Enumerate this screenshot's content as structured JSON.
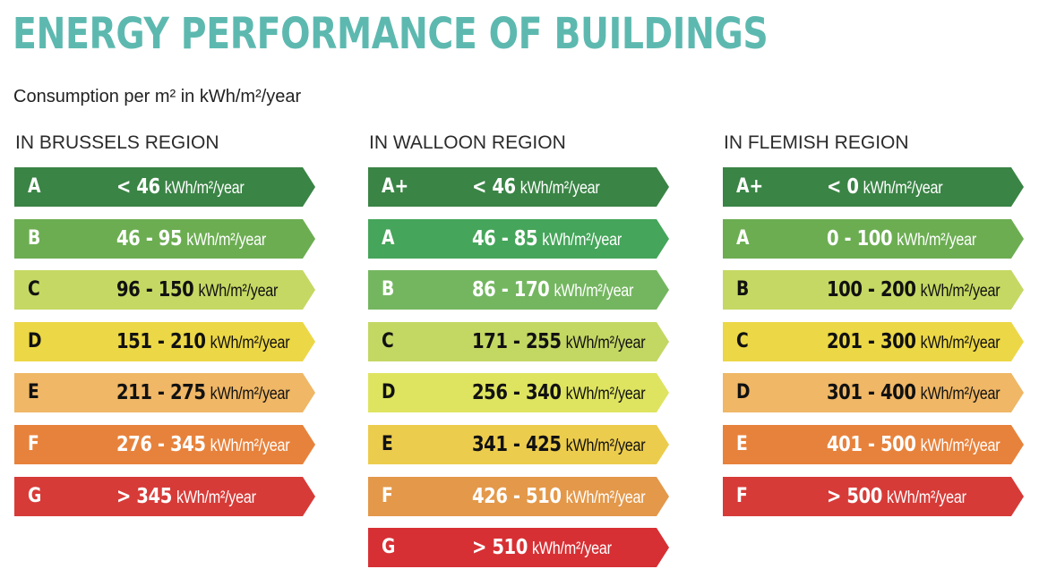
{
  "title": "ENERGY PERFORMANCE OF BUILDINGS",
  "subtitle": "Consumption per m² in kWh/m²/year",
  "regions": [
    {
      "heading": "IN BRUSSELS REGION",
      "items": [
        {
          "grade": "A",
          "range": "< 46",
          "unit": "kWh/m²/year",
          "color": "#3a8445"
        },
        {
          "grade": "B",
          "range": "46 - 95",
          "unit": "kWh/m²/year",
          "color": "#6cad52"
        },
        {
          "grade": "C",
          "range": "96 - 150",
          "unit": "kWh/m²/year",
          "color": "#c5d863"
        },
        {
          "grade": "D",
          "range": "151 - 210",
          "unit": "kWh/m²/year",
          "color": "#ecd746"
        },
        {
          "grade": "E",
          "range": "211 - 275",
          "unit": "kWh/m²/year",
          "color": "#efb766"
        },
        {
          "grade": "F",
          "range": "276 - 345",
          "unit": "kWh/m²/year",
          "color": "#e7823c"
        },
        {
          "grade": "G",
          "range": "> 345",
          "unit": "kWh/m²/year",
          "color": "#d63b38"
        }
      ]
    },
    {
      "heading": "IN WALLOON REGION",
      "items": [
        {
          "grade": "A+",
          "range": "< 46",
          "unit": "kWh/m²/year",
          "color": "#3a8445"
        },
        {
          "grade": "A",
          "range": "46 - 85",
          "unit": "kWh/m²/year",
          "color": "#45a55a"
        },
        {
          "grade": "B",
          "range": "86 - 170",
          "unit": "kWh/m²/year",
          "color": "#74b660"
        },
        {
          "grade": "C",
          "range": "171 - 255",
          "unit": "kWh/m²/year",
          "color": "#c3d763"
        },
        {
          "grade": "D",
          "range": "256 - 340",
          "unit": "kWh/m²/year",
          "color": "#dee45f"
        },
        {
          "grade": "E",
          "range": "341 - 425",
          "unit": "kWh/m²/year",
          "color": "#eccc4d"
        },
        {
          "grade": "F",
          "range": "426 - 510",
          "unit": "kWh/m²/year",
          "color": "#e3984a"
        },
        {
          "grade": "G",
          "range": "> 510",
          "unit": "kWh/m²/year",
          "color": "#d63034"
        }
      ]
    },
    {
      "heading": "IN FLEMISH REGION",
      "items": [
        {
          "grade": "A+",
          "range": "< 0",
          "unit": "kWh/m²/year",
          "color": "#3a8445"
        },
        {
          "grade": "A",
          "range": "0 - 100",
          "unit": "kWh/m²/year",
          "color": "#6cad52"
        },
        {
          "grade": "B",
          "range": "100 - 200",
          "unit": "kWh/m²/year",
          "color": "#c5d863"
        },
        {
          "grade": "C",
          "range": "201 - 300",
          "unit": "kWh/m²/year",
          "color": "#ecd746"
        },
        {
          "grade": "D",
          "range": "301 - 400",
          "unit": "kWh/m²/year",
          "color": "#efb766"
        },
        {
          "grade": "E",
          "range": "401 - 500",
          "unit": "kWh/m²/year",
          "color": "#e7823c"
        },
        {
          "grade": "F",
          "range": "> 500",
          "unit": "kWh/m²/year",
          "color": "#d63b38"
        }
      ]
    }
  ]
}
